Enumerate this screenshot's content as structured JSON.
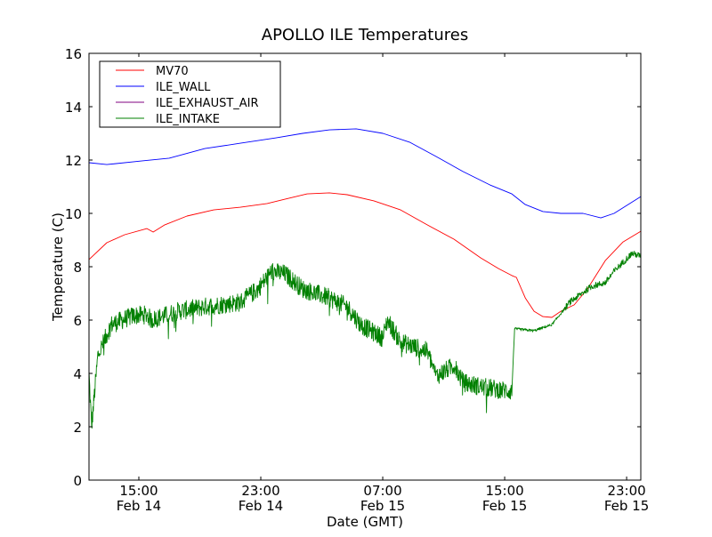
{
  "chart_data": {
    "type": "line",
    "title": "APOLLO ILE Temperatures",
    "xlabel": "Date (GMT)",
    "ylabel": "Temperature (C)",
    "x_unit": "hours since Feb 14 00:00 GMT",
    "xlim": [
      11.73,
      47.93
    ],
    "ylim": [
      0,
      16
    ],
    "yticks": [
      0,
      2,
      4,
      6,
      8,
      10,
      12,
      14,
      16
    ],
    "xticks": [
      {
        "x": 15,
        "time": "15:00",
        "date": "Feb 14"
      },
      {
        "x": 23,
        "time": "23:00",
        "date": "Feb 14"
      },
      {
        "x": 31,
        "time": "07:00",
        "date": "Feb 15"
      },
      {
        "x": 39,
        "time": "15:00",
        "date": "Feb 15"
      },
      {
        "x": 47,
        "time": "23:00",
        "date": "Feb 15"
      }
    ],
    "grid": false,
    "legend_position": "top-left",
    "series": [
      {
        "name": "MV70",
        "color": "#ff0000",
        "noise": 0,
        "points": [
          [
            11.73,
            8.27
          ],
          [
            12.9,
            8.9
          ],
          [
            14.07,
            9.2
          ],
          [
            15.53,
            9.43
          ],
          [
            15.94,
            9.3
          ],
          [
            16.7,
            9.57
          ],
          [
            18.16,
            9.9
          ],
          [
            19.91,
            10.13
          ],
          [
            21.66,
            10.23
          ],
          [
            23.42,
            10.37
          ],
          [
            24.58,
            10.53
          ],
          [
            26.04,
            10.73
          ],
          [
            27.5,
            10.77
          ],
          [
            28.67,
            10.7
          ],
          [
            30.42,
            10.47
          ],
          [
            32.17,
            10.13
          ],
          [
            33.92,
            9.57
          ],
          [
            35.68,
            9.03
          ],
          [
            37.43,
            8.33
          ],
          [
            38.6,
            7.93
          ],
          [
            39.47,
            7.67
          ],
          [
            39.77,
            7.6
          ],
          [
            40.35,
            6.83
          ],
          [
            40.93,
            6.33
          ],
          [
            41.51,
            6.13
          ],
          [
            42.1,
            6.1
          ],
          [
            42.68,
            6.33
          ],
          [
            43.56,
            6.57
          ],
          [
            44.43,
            7.17
          ],
          [
            45.6,
            8.23
          ],
          [
            46.77,
            8.93
          ],
          [
            47.93,
            9.33
          ]
        ]
      },
      {
        "name": "ILE_WALL",
        "color": "#0000ff",
        "noise": 0,
        "points": [
          [
            11.73,
            11.9
          ],
          [
            12.9,
            11.83
          ],
          [
            15.23,
            11.97
          ],
          [
            16.99,
            12.07
          ],
          [
            19.33,
            12.43
          ],
          [
            21.66,
            12.63
          ],
          [
            24.0,
            12.83
          ],
          [
            25.75,
            13.0
          ],
          [
            27.5,
            13.13
          ],
          [
            29.26,
            13.17
          ],
          [
            31.01,
            13.0
          ],
          [
            32.76,
            12.67
          ],
          [
            34.51,
            12.13
          ],
          [
            36.26,
            11.57
          ],
          [
            38.02,
            11.07
          ],
          [
            39.47,
            10.73
          ],
          [
            40.35,
            10.33
          ],
          [
            41.51,
            10.07
          ],
          [
            42.68,
            10.0
          ],
          [
            44.14,
            10.0
          ],
          [
            45.31,
            9.83
          ],
          [
            46.18,
            10.0
          ],
          [
            47.93,
            10.63
          ]
        ]
      },
      {
        "name": "ILE_EXHAUST_AIR",
        "color": "#800080",
        "noise": 0,
        "points": []
      },
      {
        "name": "ILE_INTAKE",
        "color": "#008000",
        "noise": 1,
        "points": [
          [
            11.73,
            4.0
          ],
          [
            11.9,
            2.0
          ],
          [
            12.31,
            4.67
          ],
          [
            13.19,
            5.83
          ],
          [
            14.65,
            6.17
          ],
          [
            15.53,
            6.2
          ],
          [
            15.82,
            6.0
          ],
          [
            17.57,
            6.33
          ],
          [
            19.33,
            6.5
          ],
          [
            21.66,
            6.67
          ],
          [
            22.83,
            7.17
          ],
          [
            23.71,
            7.83
          ],
          [
            24.58,
            7.73
          ],
          [
            25.75,
            7.17
          ],
          [
            27.5,
            6.83
          ],
          [
            28.67,
            6.5
          ],
          [
            29.55,
            5.83
          ],
          [
            31.01,
            5.33
          ],
          [
            31.3,
            6.0
          ],
          [
            32.17,
            5.17
          ],
          [
            33.92,
            4.83
          ],
          [
            34.51,
            3.9
          ],
          [
            35.68,
            4.3
          ],
          [
            36.26,
            3.67
          ],
          [
            37.43,
            3.5
          ],
          [
            38.6,
            3.4
          ],
          [
            39.47,
            3.33
          ],
          [
            39.65,
            5.67
          ],
          [
            40.93,
            5.6
          ],
          [
            42.1,
            5.83
          ],
          [
            43.27,
            6.67
          ],
          [
            44.72,
            7.27
          ],
          [
            45.6,
            7.4
          ],
          [
            46.18,
            7.83
          ],
          [
            47.35,
            8.5
          ],
          [
            47.93,
            8.4
          ]
        ]
      }
    ]
  }
}
